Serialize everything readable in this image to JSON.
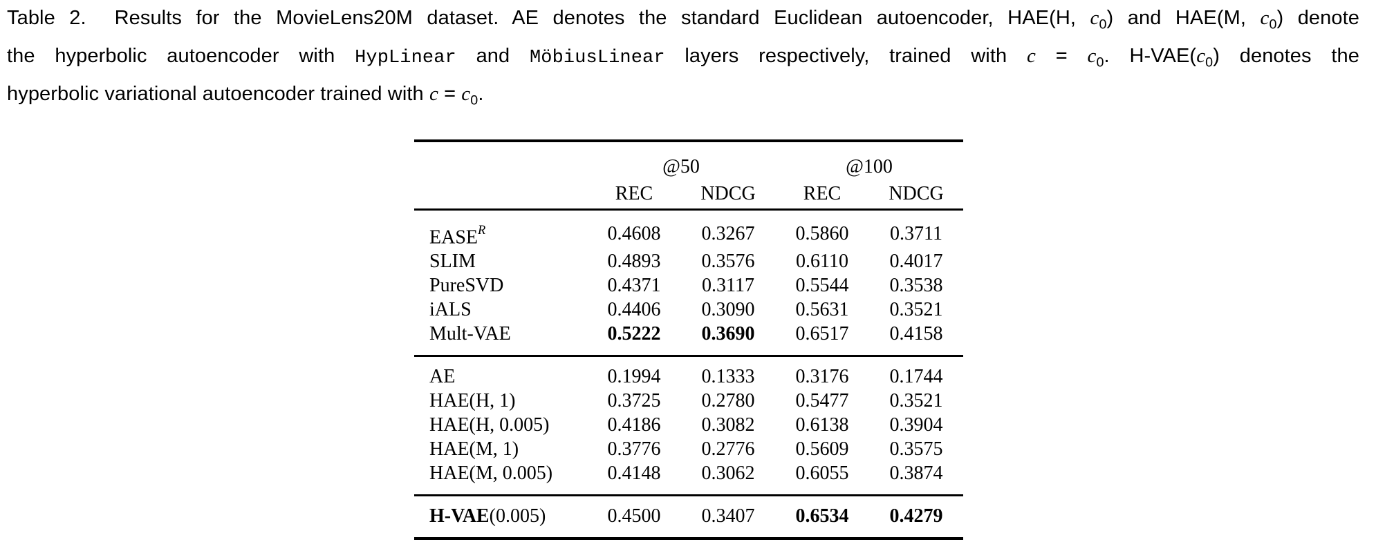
{
  "caption": {
    "lines": [
      {
        "justify": true,
        "segments": [
          {
            "t": "Table 2.  Results for the MovieLens20M dataset. AE denotes the standard Euclidean autoencoder, HAE(H, "
          },
          {
            "t": "c",
            "s": "mi"
          },
          {
            "t": "0",
            "s": "sub"
          },
          {
            "t": ") and HAE(M, "
          },
          {
            "t": "c",
            "s": "mi"
          },
          {
            "t": "0",
            "s": "sub"
          },
          {
            "t": ") denote"
          }
        ]
      },
      {
        "justify": true,
        "segments": [
          {
            "t": "the hyperbolic autoencoder with "
          },
          {
            "t": "HypLinear",
            "s": "mono"
          },
          {
            "t": " and "
          },
          {
            "t": "MöbiusLinear",
            "s": "mono"
          },
          {
            "t": " layers respectively, trained with "
          },
          {
            "t": "c",
            "s": "mi"
          },
          {
            "t": " = "
          },
          {
            "t": "c",
            "s": "mi"
          },
          {
            "t": "0",
            "s": "sub"
          },
          {
            "t": ". H-VAE("
          },
          {
            "t": "c",
            "s": "mi"
          },
          {
            "t": "0",
            "s": "sub"
          },
          {
            "t": ") denotes the"
          }
        ]
      },
      {
        "justify": false,
        "segments": [
          {
            "t": "hyperbolic variational autoencoder trained with "
          },
          {
            "t": "c",
            "s": "mi"
          },
          {
            "t": " = "
          },
          {
            "t": "c",
            "s": "mi"
          },
          {
            "t": "0",
            "s": "sub"
          },
          {
            "t": "."
          }
        ]
      }
    ]
  },
  "table": {
    "header": {
      "groups": [
        "@50",
        "@100"
      ],
      "cols": [
        "REC",
        "NDCG",
        "REC",
        "NDCG"
      ]
    },
    "groups": [
      {
        "rows": [
          {
            "label": [
              {
                "t": "EASE"
              },
              {
                "t": "R",
                "s": "sup"
              }
            ],
            "values": [
              {
                "v": "0.4608"
              },
              {
                "v": "0.3267"
              },
              {
                "v": "0.5860"
              },
              {
                "v": "0.3711"
              }
            ]
          },
          {
            "label": [
              {
                "t": "SLIM"
              }
            ],
            "values": [
              {
                "v": "0.4893"
              },
              {
                "v": "0.3576"
              },
              {
                "v": "0.6110"
              },
              {
                "v": "0.4017"
              }
            ]
          },
          {
            "label": [
              {
                "t": "PureSVD"
              }
            ],
            "values": [
              {
                "v": "0.4371"
              },
              {
                "v": "0.3117"
              },
              {
                "v": "0.5544"
              },
              {
                "v": "0.3538"
              }
            ]
          },
          {
            "label": [
              {
                "t": "iALS"
              }
            ],
            "values": [
              {
                "v": "0.4406"
              },
              {
                "v": "0.3090"
              },
              {
                "v": "0.5631"
              },
              {
                "v": "0.3521"
              }
            ]
          },
          {
            "label": [
              {
                "t": "Mult-VAE"
              }
            ],
            "values": [
              {
                "v": "0.5222",
                "b": true
              },
              {
                "v": "0.3690",
                "b": true
              },
              {
                "v": "0.6517"
              },
              {
                "v": "0.4158"
              }
            ]
          }
        ]
      },
      {
        "rows": [
          {
            "label": [
              {
                "t": "AE"
              }
            ],
            "values": [
              {
                "v": "0.1994"
              },
              {
                "v": "0.1333"
              },
              {
                "v": "0.3176"
              },
              {
                "v": "0.1744"
              }
            ]
          },
          {
            "label": [
              {
                "t": "HAE(H, 1)"
              }
            ],
            "values": [
              {
                "v": "0.3725"
              },
              {
                "v": "0.2780"
              },
              {
                "v": "0.5477"
              },
              {
                "v": "0.3521"
              }
            ]
          },
          {
            "label": [
              {
                "t": "HAE(H, 0.005)"
              }
            ],
            "values": [
              {
                "v": "0.4186"
              },
              {
                "v": "0.3082"
              },
              {
                "v": "0.6138"
              },
              {
                "v": "0.3904"
              }
            ]
          },
          {
            "label": [
              {
                "t": "HAE(M, 1)"
              }
            ],
            "values": [
              {
                "v": "0.3776"
              },
              {
                "v": "0.2776"
              },
              {
                "v": "0.5609"
              },
              {
                "v": "0.3575"
              }
            ]
          },
          {
            "label": [
              {
                "t": "HAE(M, 0.005)"
              }
            ],
            "values": [
              {
                "v": "0.4148"
              },
              {
                "v": "0.3062"
              },
              {
                "v": "0.6055"
              },
              {
                "v": "0.3874"
              }
            ]
          }
        ]
      },
      {
        "rows": [
          {
            "label": [
              {
                "t": "H-VAE",
                "s": "b"
              },
              {
                "t": "(0.005)"
              }
            ],
            "values": [
              {
                "v": "0.4500"
              },
              {
                "v": "0.3407"
              },
              {
                "v": "0.6534",
                "b": true
              },
              {
                "v": "0.4279",
                "b": true
              }
            ]
          }
        ]
      }
    ]
  }
}
